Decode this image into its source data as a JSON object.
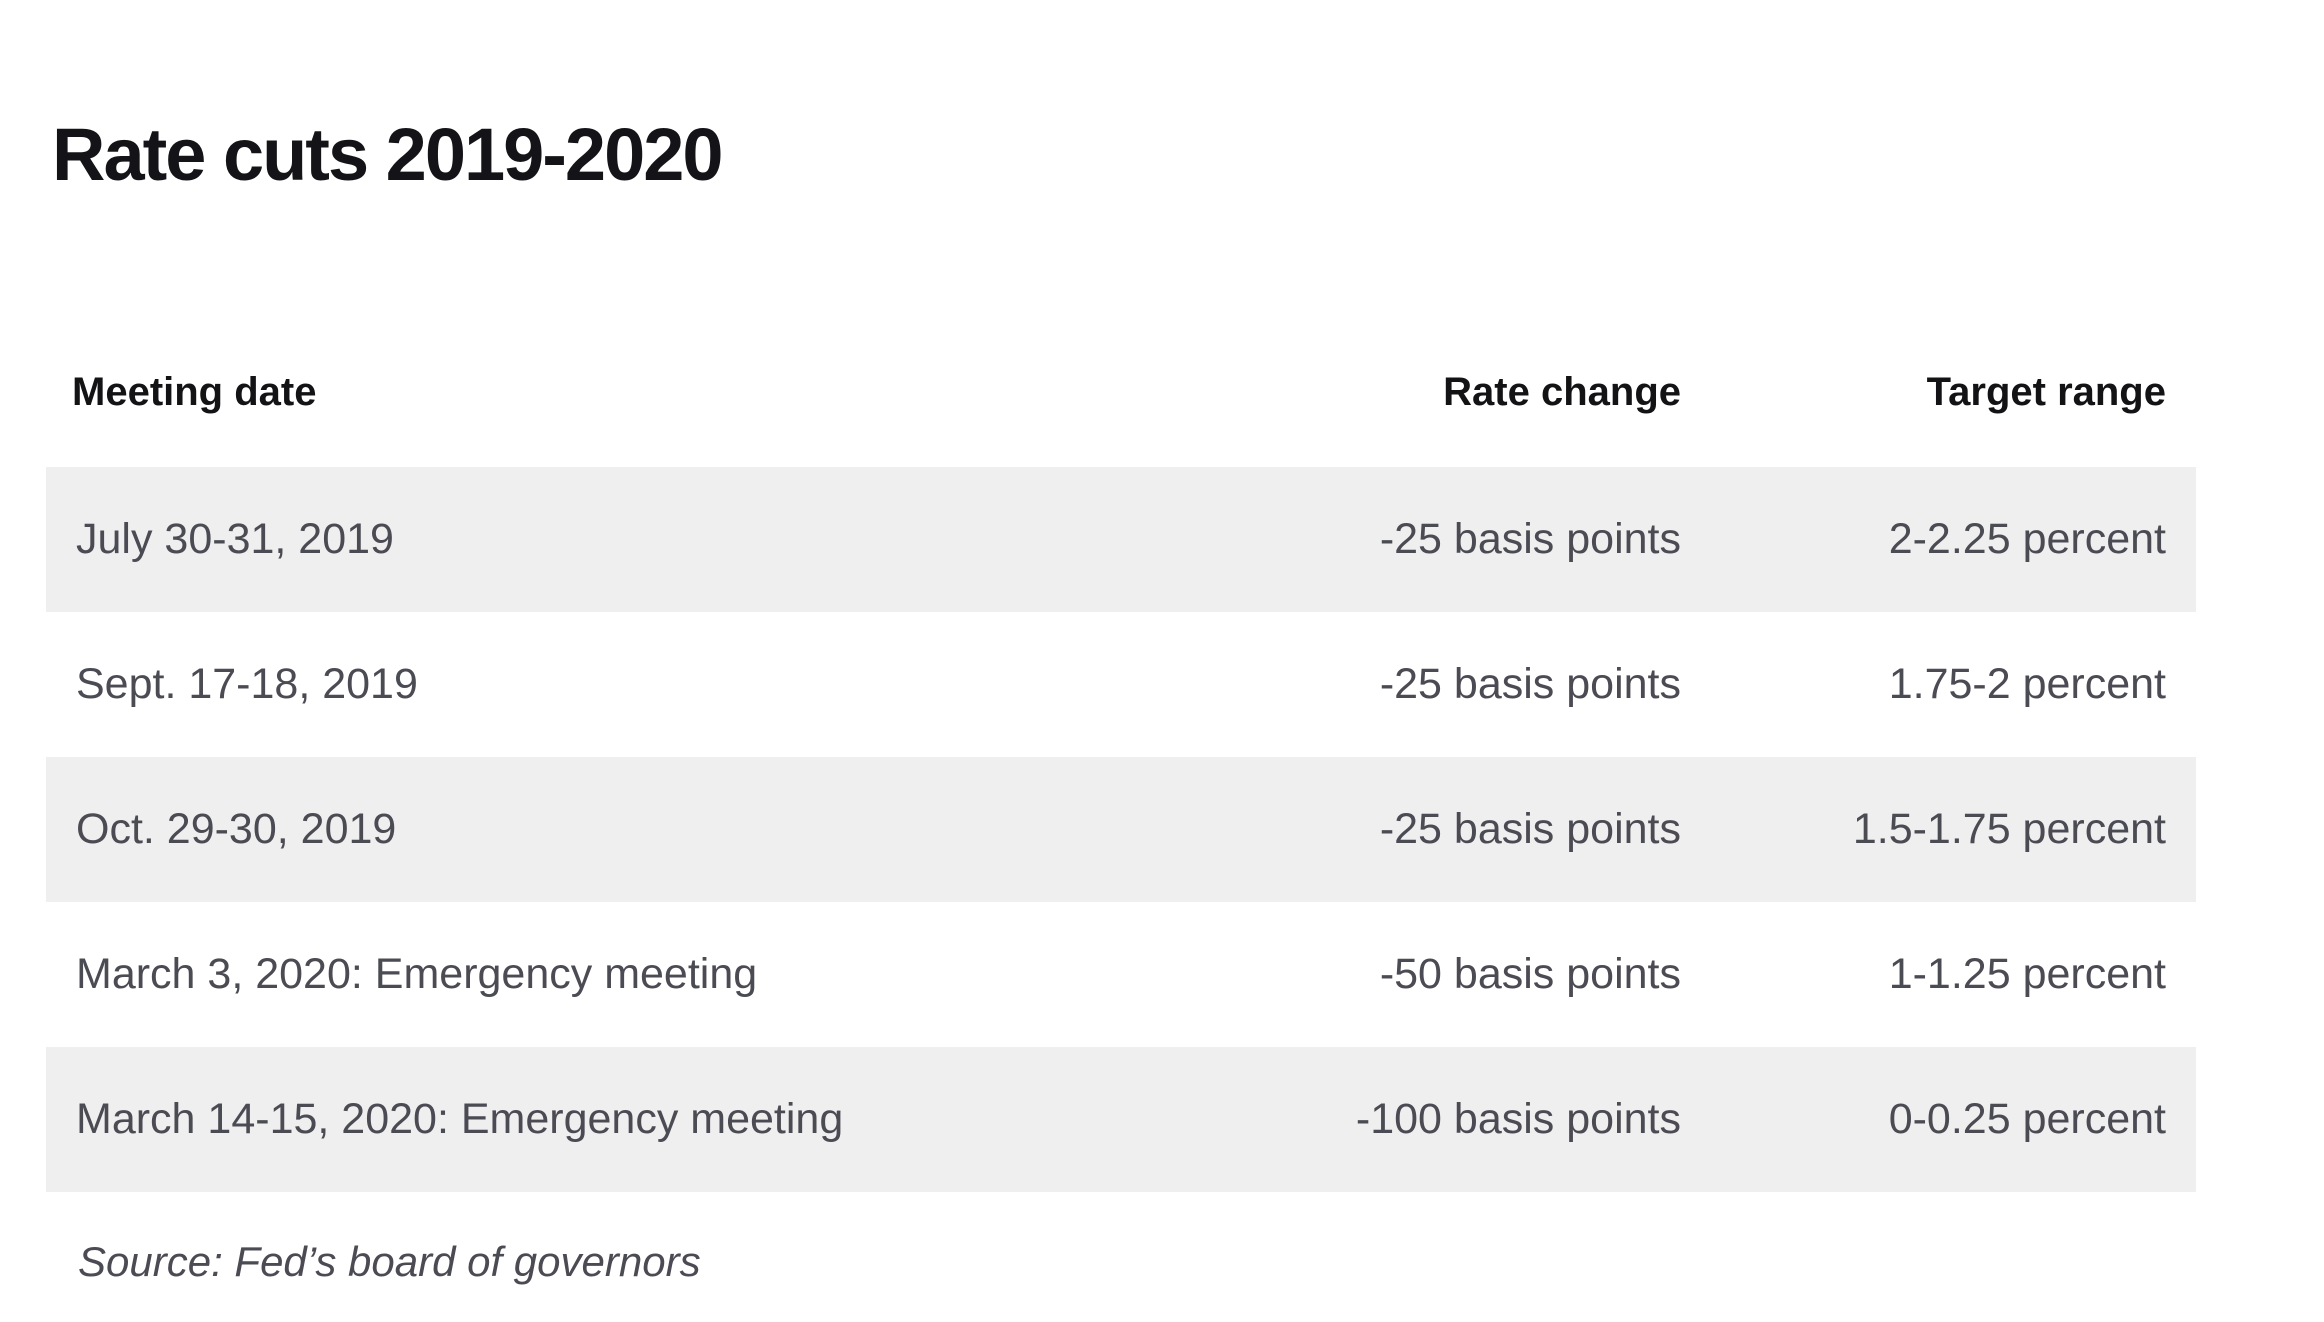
{
  "chart_data": {
    "type": "table",
    "title": "Rate cuts 2019-2020",
    "columns": [
      "Meeting date",
      "Rate change",
      "Target range"
    ],
    "rows": [
      [
        "July 30-31, 2019",
        "-25 basis points",
        "2-2.25 percent"
      ],
      [
        "Sept. 17-18, 2019",
        "-25 basis points",
        "1.75-2 percent"
      ],
      [
        "Oct. 29-30, 2019",
        "-25 basis points",
        "1.5-1.75 percent"
      ],
      [
        "March 3, 2020: Emergency meeting",
        "-50 basis points",
        "1-1.25 percent"
      ],
      [
        "March 14-15, 2020: Emergency meeting",
        "-100 basis points",
        "0-0.25 percent"
      ]
    ],
    "source": "Source: Fed’s board of governors",
    "column_alignment": [
      "left",
      "right",
      "right"
    ],
    "striping": "rows 1, 3 and 5 shaded light gray",
    "numeric": {
      "rate_change_basis_points": [
        -25,
        -25,
        -25,
        -50,
        -100
      ],
      "target_range_percent": [
        [
          2,
          2.25
        ],
        [
          1.75,
          2
        ],
        [
          1.5,
          1.75
        ],
        [
          1,
          1.25
        ],
        [
          0,
          0.25
        ]
      ]
    }
  },
  "colors": {
    "background": "#ffffff",
    "row_stripe": "#efefef",
    "heading_text": "#141418",
    "body_text": "#4b4b54"
  }
}
